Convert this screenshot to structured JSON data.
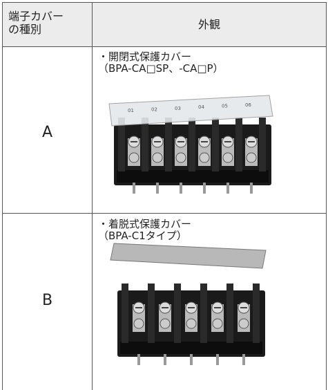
{
  "table": {
    "header": [
      "端子カバーの種別",
      "外観"
    ],
    "rows": [
      {
        "type": "A",
        "description": [
          "・開閉式保護カバー",
          "（BPA-CA□SP、-CA□P）"
        ],
        "cover_labels": [
          "01",
          "02",
          "03",
          "04",
          "05",
          "06"
        ]
      },
      {
        "type": "B",
        "description": [
          "・着脱式保護カバー",
          "（BPA-C1タイプ）"
        ]
      }
    ]
  }
}
